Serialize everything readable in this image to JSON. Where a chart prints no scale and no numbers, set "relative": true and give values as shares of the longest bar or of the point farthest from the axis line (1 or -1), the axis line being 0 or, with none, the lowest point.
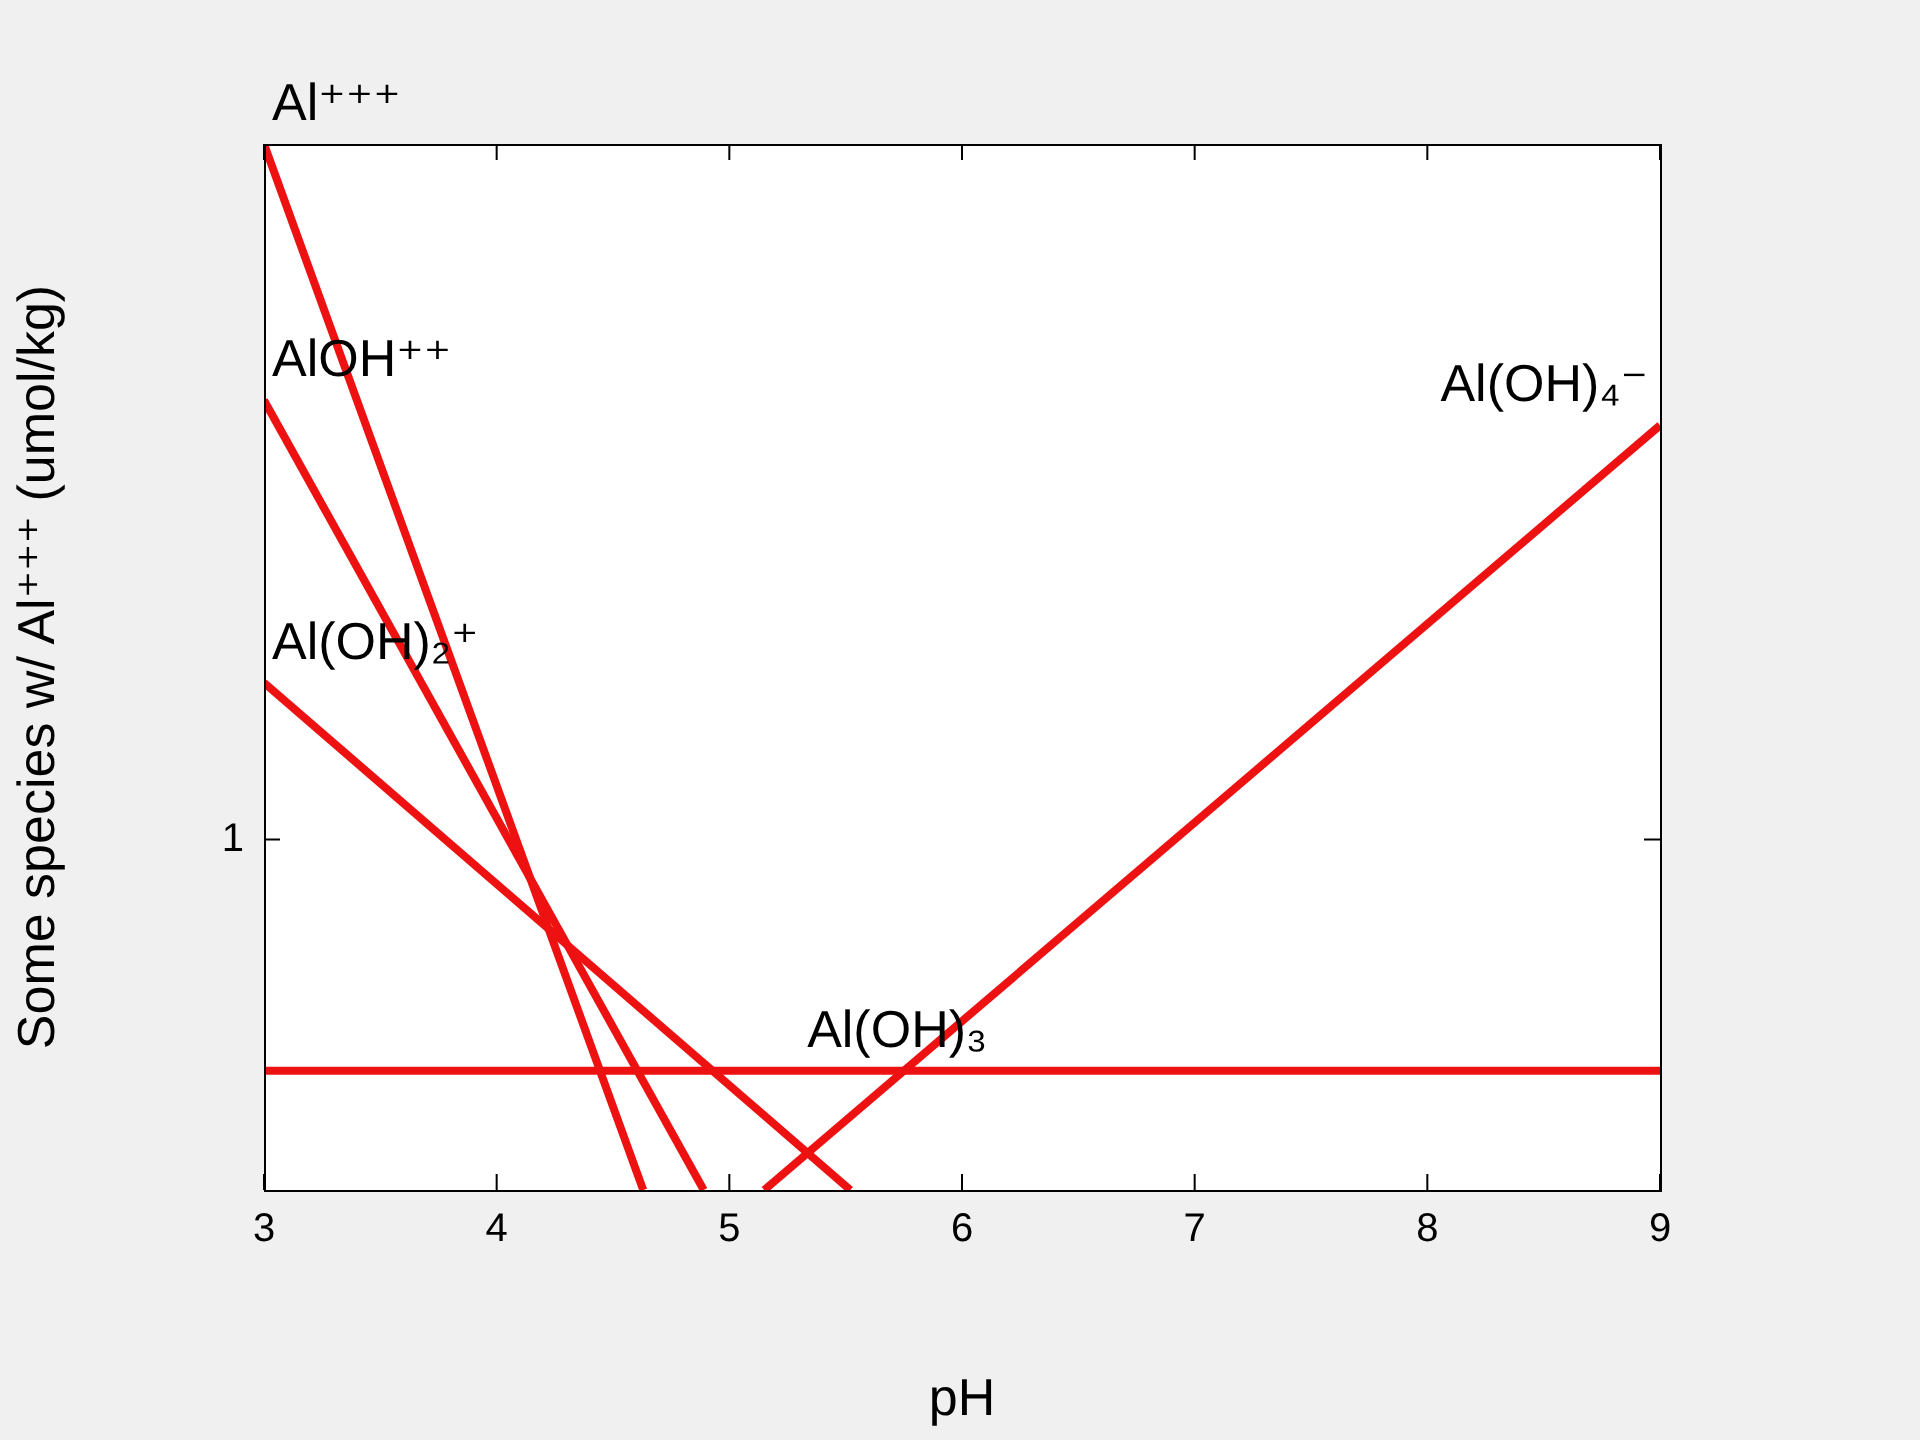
{
  "chart_data": {
    "type": "line",
    "xlabel": "pH",
    "ylabel": "Some species w/ Al⁺⁺⁺ (umol/kg)",
    "relative": true,
    "xlim": [
      3,
      9
    ],
    "xticks": [
      3,
      4,
      5,
      6,
      7,
      8,
      9
    ],
    "grid": false,
    "legend": false,
    "marker": "none",
    "line_style": "solid",
    "series": [
      {
        "name": "Al⁺⁺⁺",
        "color": "#ee1111",
        "x": [
          3,
          4.63
        ],
        "values": [
          1,
          0
        ]
      },
      {
        "name": "AlOH⁺⁺",
        "color": "#ee1111",
        "x": [
          3,
          4.89
        ],
        "values": [
          0.755,
          0
        ]
      },
      {
        "name": "Al(OH)₂⁺",
        "color": "#ee1111",
        "x": [
          3,
          5.52
        ],
        "values": [
          0.485,
          0
        ]
      },
      {
        "name": "Al(OH)₃",
        "color": "#ee1111",
        "x": [
          3,
          5.3,
          9
        ],
        "values": [
          0.114,
          0.114,
          0.114
        ]
      },
      {
        "name": "Al(OH)₄⁻",
        "color": "#ee1111",
        "x": [
          5.15,
          9
        ],
        "values": [
          0,
          0.731
        ]
      }
    ],
    "annotations": [
      "1"
    ]
  }
}
